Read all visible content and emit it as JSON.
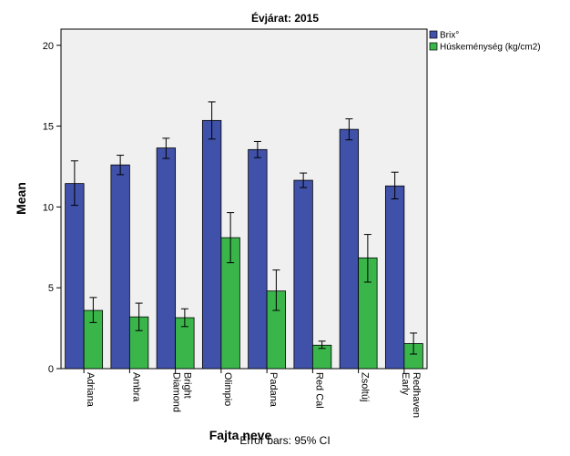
{
  "chart_data": {
    "type": "bar",
    "title": "Évjárat: 2015",
    "xlabel": "Fajta neve",
    "ylabel": "Mean",
    "ylim": [
      0,
      21
    ],
    "yticks": [
      0,
      5,
      10,
      15,
      20
    ],
    "grid": false,
    "legend_position": "top-right",
    "categories": [
      "Adriana",
      "Ambra",
      [
        "Diamond",
        "Bright"
      ],
      "Olimpio",
      "Padana",
      "Red Cal",
      "Zsoltúj",
      [
        "Early",
        "Redhaven"
      ]
    ],
    "series": [
      {
        "name": "Brix°",
        "color": "#3F51A8",
        "values": [
          11.45,
          12.6,
          13.65,
          15.35,
          13.55,
          11.65,
          14.8,
          11.3
        ],
        "error_low": [
          10.1,
          12.0,
          13.0,
          14.2,
          13.05,
          11.2,
          14.15,
          10.5
        ],
        "error_high": [
          12.85,
          13.2,
          14.25,
          16.5,
          14.05,
          12.1,
          15.45,
          12.15
        ]
      },
      {
        "name": "Húskeménység (kg/cm2)",
        "color": "#3AB54A",
        "values": [
          3.6,
          3.2,
          3.15,
          8.1,
          4.8,
          1.45,
          6.85,
          1.55
        ],
        "error_low": [
          2.85,
          2.35,
          2.6,
          6.55,
          3.6,
          1.25,
          5.35,
          0.9
        ],
        "error_high": [
          4.4,
          4.05,
          3.7,
          9.65,
          6.1,
          1.7,
          8.3,
          2.2
        ]
      }
    ],
    "annotation": "Error bars: 95% CI"
  }
}
